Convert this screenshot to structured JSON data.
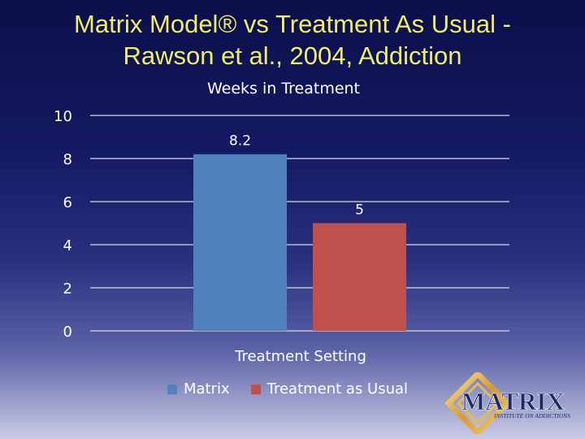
{
  "slide": {
    "title_line1": "Matrix Model® vs Treatment As Usual -",
    "title_line2": "Rawson et al., 2004, Addiction"
  },
  "chart_data": {
    "type": "bar",
    "title": "Weeks in Treatment",
    "xlabel": "Treatment Setting",
    "ylabel": "",
    "ylim": [
      0,
      10
    ],
    "yticks": [
      0,
      2,
      4,
      6,
      8,
      10
    ],
    "grid": true,
    "legend_position": "bottom",
    "categories": [
      ""
    ],
    "series": [
      {
        "name": "Matrix",
        "values": [
          8.2
        ],
        "color": "#4f81bd",
        "label": "8.2"
      },
      {
        "name": "Treatment as Usual",
        "values": [
          5
        ],
        "color": "#c0504d",
        "label": "5"
      }
    ]
  },
  "logo": {
    "text": "MATRIX",
    "subtext": "INSTITUTE ON ADDICTIONS"
  },
  "colors": {
    "title": "#f2ec6b",
    "gridline": "#d9d9d9"
  }
}
